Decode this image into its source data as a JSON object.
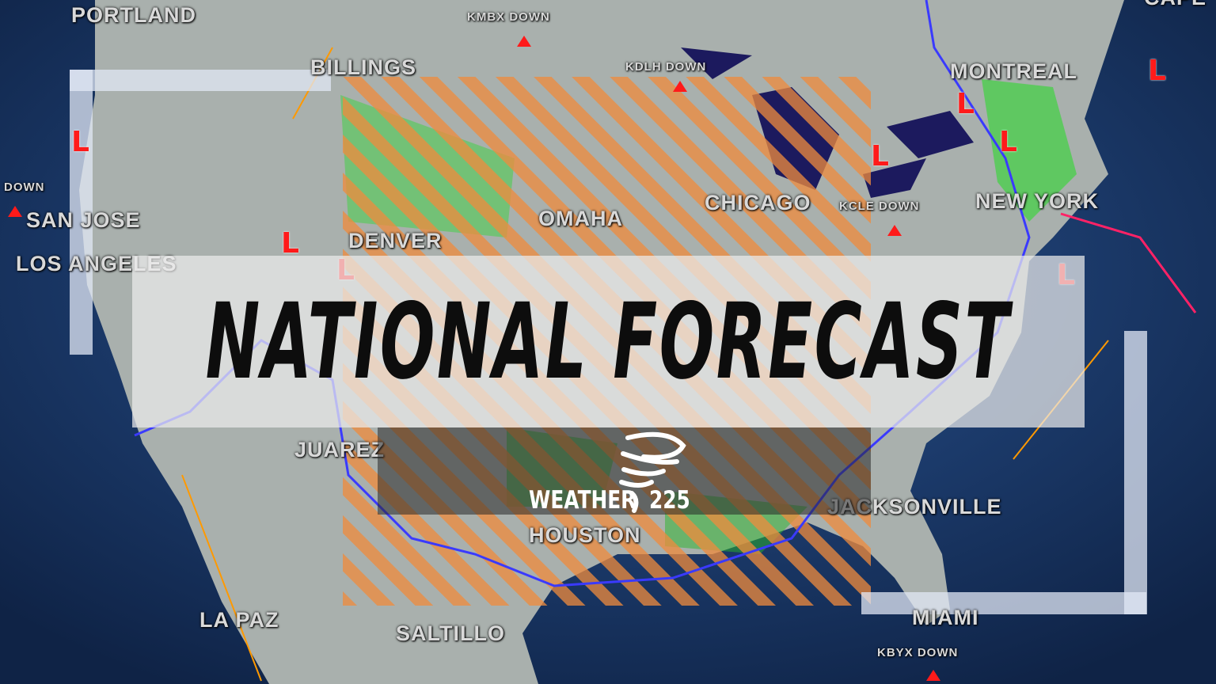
{
  "title": "NATIONAL FORECAST",
  "logo": {
    "word": "WEATHER",
    "number": "225"
  },
  "cities": [
    "PORTLAND",
    "BILLINGS",
    "MONTREAL",
    "SAN JOSE",
    "DENVER",
    "OMAHA",
    "CHICAGO",
    "NEW YORK",
    "LOS ANGELES",
    "JUAREZ",
    "JACKSONVILLE",
    "HOUSTON",
    "LA PAZ",
    "SALTILLO",
    "MIAMI",
    "CAPE"
  ],
  "radar_status": [
    "KMBX DOWN",
    "KDLH DOWN",
    "DOWN",
    "KCLE DOWN",
    "KBYX DOWN"
  ],
  "low_marker": "L",
  "colors": {
    "ocean": "#17325e",
    "land": "#a9b0ad",
    "hazard_hatch": "#f08a3c",
    "low": "#ff1a1a",
    "lakes": "#1c1a5e",
    "radar_green": "#22dd22"
  }
}
